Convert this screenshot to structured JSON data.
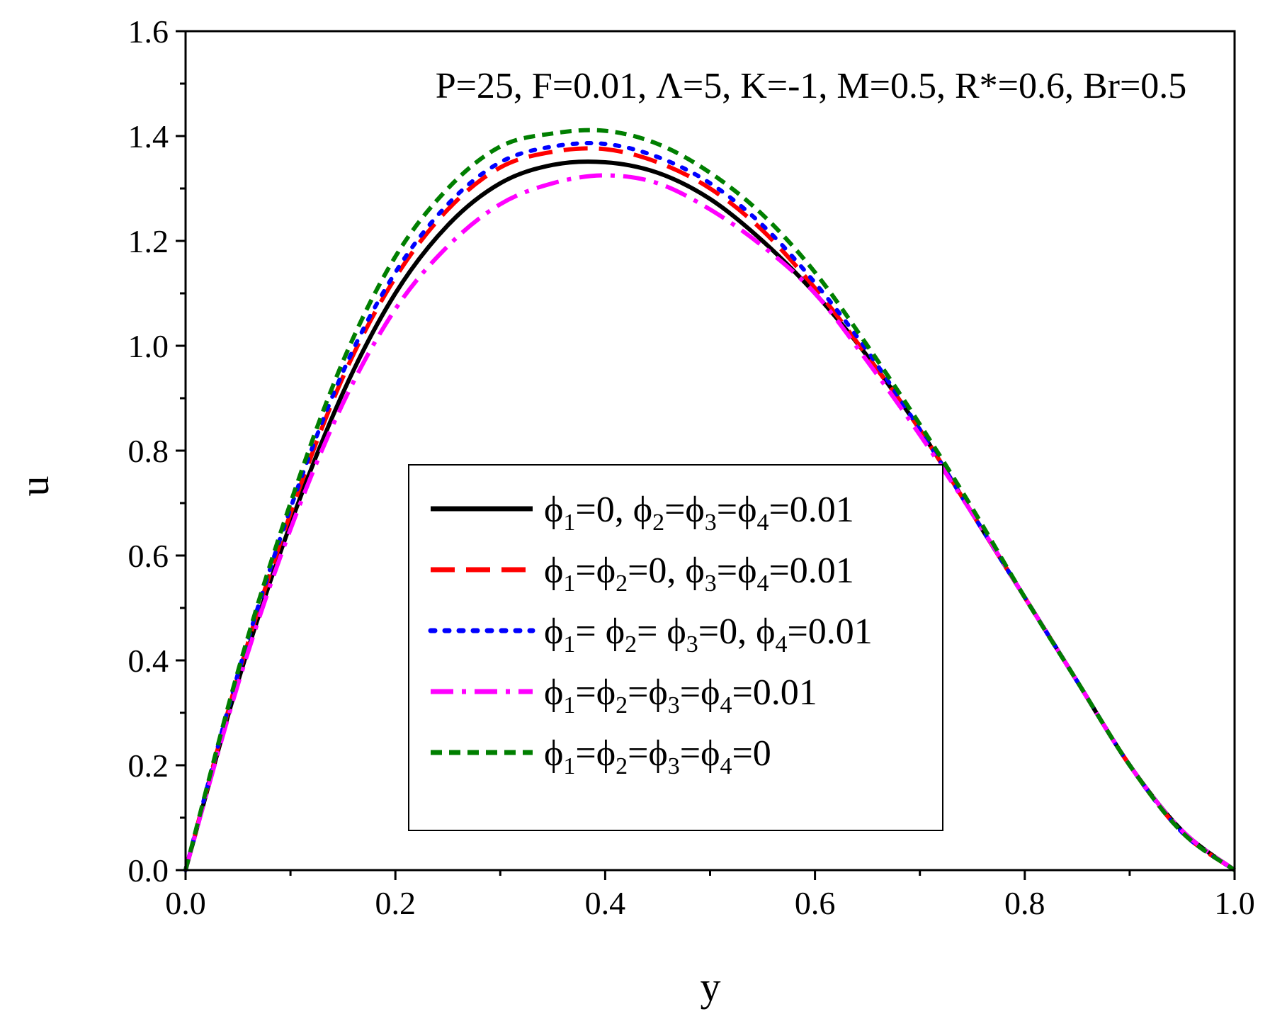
{
  "chart_data": {
    "type": "line",
    "title": "",
    "annotation": "P=25, F=0.01, Λ=5, K=-1, M=0.5, R*=0.6, Br=0.5",
    "xlabel": "y",
    "ylabel": "u",
    "xlim": [
      0,
      1
    ],
    "ylim": [
      0,
      1.6
    ],
    "xticks": [
      "0.0",
      "0.2",
      "0.4",
      "0.6",
      "0.8",
      "1.0"
    ],
    "yticks": [
      "0.0",
      "0.2",
      "0.4",
      "0.6",
      "0.8",
      "1.0",
      "1.2",
      "1.4",
      "1.6"
    ],
    "grid": false,
    "legend_position": "center",
    "x": [
      0,
      0.05,
      0.1,
      0.15,
      0.2,
      0.25,
      0.3,
      0.35,
      0.4,
      0.45,
      0.5,
      0.55,
      0.6,
      0.65,
      0.7,
      0.75,
      0.8,
      0.85,
      0.9,
      0.95,
      1.0
    ],
    "series": [
      {
        "name": "ϕ1=0, ϕ2=ϕ3=ϕ4=0.01",
        "legend_parts": [
          [
            "ϕ",
            "1",
            "=0, "
          ],
          [
            "ϕ",
            "2",
            "="
          ],
          [
            "ϕ",
            "3",
            "="
          ],
          [
            "ϕ",
            "4",
            "=0.01"
          ]
        ],
        "color": "#000000",
        "dash": "none",
        "values": [
          0.0,
          0.36,
          0.66,
          0.91,
          1.1,
          1.23,
          1.31,
          1.345,
          1.35,
          1.33,
          1.28,
          1.2,
          1.1,
          0.98,
          0.84,
          0.68,
          0.52,
          0.36,
          0.2,
          0.075,
          0.0
        ]
      },
      {
        "name": "ϕ1=ϕ2=0, ϕ3=ϕ4=0.01",
        "legend_parts": [
          [
            "ϕ",
            "1",
            "="
          ],
          [
            "ϕ",
            "2",
            "=0, "
          ],
          [
            "ϕ",
            "3",
            "="
          ],
          [
            "ϕ",
            "4",
            "=0.01"
          ]
        ],
        "color": "#ff0000",
        "dash": "long-dash",
        "values": [
          0.0,
          0.37,
          0.68,
          0.94,
          1.13,
          1.26,
          1.34,
          1.37,
          1.375,
          1.35,
          1.3,
          1.22,
          1.11,
          0.98,
          0.84,
          0.68,
          0.52,
          0.36,
          0.2,
          0.072,
          0.0
        ]
      },
      {
        "name": "ϕ1= ϕ2= ϕ3=0, ϕ4=0.01",
        "legend_parts": [
          [
            "ϕ",
            "1",
            "= "
          ],
          [
            "ϕ",
            "2",
            "= "
          ],
          [
            "ϕ",
            "3",
            "=0, "
          ],
          [
            "ϕ",
            "4",
            "=0.01"
          ]
        ],
        "color": "#0000ff",
        "dash": "dot",
        "values": [
          0.0,
          0.375,
          0.69,
          0.95,
          1.14,
          1.27,
          1.35,
          1.38,
          1.385,
          1.36,
          1.31,
          1.23,
          1.12,
          0.99,
          0.84,
          0.68,
          0.52,
          0.36,
          0.2,
          0.072,
          0.0
        ]
      },
      {
        "name": "ϕ1=ϕ2=ϕ3=ϕ4=0.01",
        "legend_parts": [
          [
            "ϕ",
            "1",
            "="
          ],
          [
            "ϕ",
            "2",
            "="
          ],
          [
            "ϕ",
            "3",
            "="
          ],
          [
            "ϕ",
            "4",
            "=0.01"
          ]
        ],
        "color": "#ff00ff",
        "dash": "dash-dot",
        "values": [
          0.0,
          0.355,
          0.65,
          0.89,
          1.07,
          1.19,
          1.27,
          1.31,
          1.325,
          1.31,
          1.26,
          1.19,
          1.1,
          0.97,
          0.83,
          0.68,
          0.52,
          0.36,
          0.2,
          0.075,
          0.0
        ]
      },
      {
        "name": "ϕ1=ϕ2=ϕ3=ϕ4=0",
        "legend_parts": [
          [
            "ϕ",
            "1",
            "="
          ],
          [
            "ϕ",
            "2",
            "="
          ],
          [
            "ϕ",
            "3",
            "="
          ],
          [
            "ϕ",
            "4",
            "=0"
          ]
        ],
        "color": "#007f00",
        "dash": "short-dash",
        "values": [
          0.0,
          0.38,
          0.7,
          0.97,
          1.17,
          1.3,
          1.38,
          1.405,
          1.41,
          1.385,
          1.33,
          1.25,
          1.14,
          1.0,
          0.85,
          0.69,
          0.52,
          0.36,
          0.2,
          0.072,
          0.0
        ]
      }
    ]
  }
}
